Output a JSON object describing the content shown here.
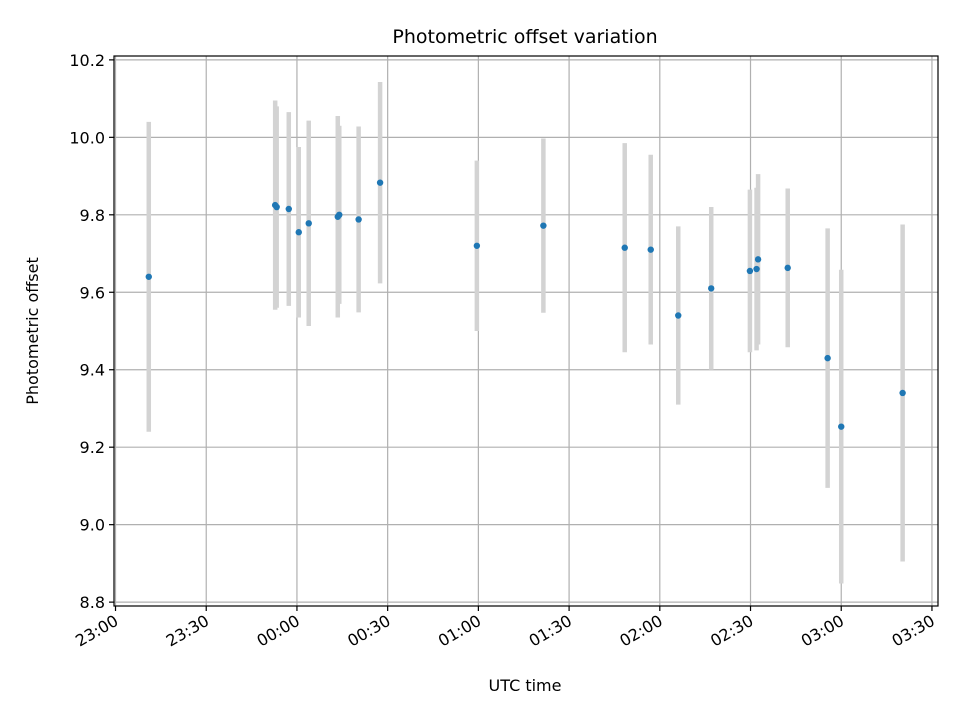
{
  "chart_data": {
    "type": "scatter",
    "title": "Photometric offset variation",
    "xlabel": "UTC time",
    "ylabel": "Photometric offset",
    "x_ticks": [
      "23:00",
      "23:30",
      "00:00",
      "00:30",
      "01:00",
      "01:30",
      "02:00",
      "02:30",
      "03:00",
      "03:30"
    ],
    "x_tick_minutes": [
      0,
      30,
      60,
      90,
      120,
      150,
      180,
      210,
      240,
      270
    ],
    "xlim": [
      -0.5,
      272
    ],
    "ylim": [
      8.79,
      10.21
    ],
    "y_ticks": [
      8.8,
      9.0,
      9.2,
      9.4,
      9.6,
      9.8,
      10.0,
      10.2
    ],
    "grid": true,
    "colors": {
      "point": "#1f77b4",
      "errorbar": "#d3d3d3",
      "grid": "#b0b0b0"
    },
    "points": [
      {
        "t": 11.0,
        "y": 9.64,
        "err": 0.4
      },
      {
        "t": 52.8,
        "y": 9.825,
        "err": 0.27
      },
      {
        "t": 53.3,
        "y": 9.82,
        "err": 0.26
      },
      {
        "t": 57.3,
        "y": 9.815,
        "err": 0.25
      },
      {
        "t": 60.6,
        "y": 9.755,
        "err": 0.22
      },
      {
        "t": 63.9,
        "y": 9.778,
        "err": 0.265
      },
      {
        "t": 73.5,
        "y": 9.795,
        "err": 0.26
      },
      {
        "t": 74.0,
        "y": 9.8,
        "err": 0.23
      },
      {
        "t": 80.4,
        "y": 9.788,
        "err": 0.24
      },
      {
        "t": 87.5,
        "y": 9.883,
        "err": 0.26
      },
      {
        "t": 119.5,
        "y": 9.72,
        "err": 0.22
      },
      {
        "t": 141.5,
        "y": 9.772,
        "err": 0.225
      },
      {
        "t": 168.4,
        "y": 9.715,
        "err": 0.27
      },
      {
        "t": 177.0,
        "y": 9.71,
        "err": 0.245
      },
      {
        "t": 186.1,
        "y": 9.54,
        "err": 0.23
      },
      {
        "t": 197.0,
        "y": 9.61,
        "err": 0.21
      },
      {
        "t": 209.8,
        "y": 9.655,
        "err": 0.21
      },
      {
        "t": 212.0,
        "y": 9.66,
        "err": 0.21
      },
      {
        "t": 212.5,
        "y": 9.685,
        "err": 0.22
      },
      {
        "t": 222.3,
        "y": 9.663,
        "err": 0.205
      },
      {
        "t": 235.5,
        "y": 9.43,
        "err": 0.335
      },
      {
        "t": 240.0,
        "y": 9.253,
        "err": 0.405
      },
      {
        "t": 260.3,
        "y": 9.34,
        "err": 0.435
      }
    ]
  }
}
